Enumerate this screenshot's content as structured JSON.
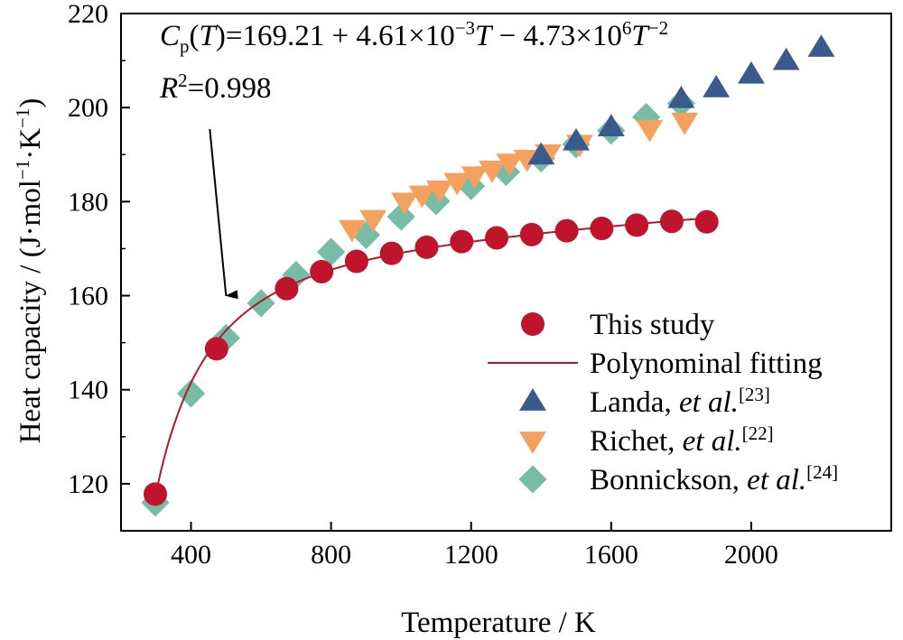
{
  "chart_data": {
    "type": "scatter",
    "title": "",
    "xlabel": "Temperature / K",
    "ylabel_main": "Heat capacity / (J·mol",
    "ylabel_sup1": "−1",
    "ylabel_mid": "·K",
    "ylabel_sup2": "−1",
    "ylabel_end": ")",
    "xlim": [
      200,
      2400
    ],
    "ylim": [
      110,
      220
    ],
    "xticks": [
      400,
      800,
      1200,
      1600,
      2000
    ],
    "yticks": [
      120,
      140,
      160,
      180,
      200,
      220
    ],
    "grid": false,
    "legend_position": "bottom-right",
    "annotation": {
      "eq_C": "C",
      "eq_p": "p",
      "eq_open": "(",
      "eq_T1": "T",
      "eq_mid1": ")=169.21 + 4.61×10",
      "eq_exp1": "−3",
      "eq_T2": "T",
      "eq_mid2": " − 4.73×10",
      "eq_exp2": "6",
      "eq_T3": "T",
      "eq_exp3": "−2",
      "r2_R": "R",
      "r2_exp": "2",
      "r2_val": "=0.998",
      "arrow_target": [
        500,
        160
      ]
    },
    "fit": {
      "name": "Polynominal fitting",
      "color": "#b2182b",
      "a": 169.21,
      "b": 0.00461,
      "c": 4730000,
      "x_range": [
        298,
        1880
      ]
    },
    "series": [
      {
        "name": "This study",
        "marker": "circle",
        "color": "#c0142c",
        "x": [
          298,
          473,
          673,
          773,
          873,
          973,
          1073,
          1173,
          1273,
          1373,
          1473,
          1573,
          1673,
          1773,
          1873
        ],
        "y": [
          117.8,
          148.7,
          161.5,
          165.1,
          167.3,
          169.0,
          170.3,
          171.5,
          172.3,
          173.0,
          173.8,
          174.3,
          175.0,
          175.8,
          175.7
        ]
      },
      {
        "name": "Landa, ",
        "name_italic": "et al.",
        "ref": "[23]",
        "marker": "triangle-up",
        "color": "#3a5a8c",
        "x": [
          1400,
          1500,
          1600,
          1800,
          1900,
          2000,
          2100,
          2200
        ],
        "y": [
          189.8,
          192.8,
          195.8,
          201.8,
          204.1,
          207.0,
          209.9,
          212.7
        ]
      },
      {
        "name": "Richet, ",
        "name_italic": "et al.",
        "ref": "[22]",
        "marker": "triangle-down",
        "color": "#f4a15f",
        "x": [
          860,
          920,
          1010,
          1060,
          1110,
          1160,
          1210,
          1260,
          1310,
          1360,
          1420,
          1510,
          1710,
          1810
        ],
        "y": [
          174.2,
          176.3,
          180.0,
          181.5,
          182.6,
          184.2,
          185.6,
          186.8,
          188.3,
          189.1,
          190.3,
          192.3,
          195.5,
          197.0
        ]
      },
      {
        "name": "Bonnickson, ",
        "name_italic": "et al.",
        "ref": "[24]",
        "marker": "diamond",
        "color": "#76bca6",
        "x": [
          298,
          400,
          500,
          600,
          700,
          800,
          900,
          1000,
          1100,
          1200,
          1300,
          1400,
          1500,
          1600,
          1700,
          1800
        ],
        "y": [
          116.0,
          139.2,
          151.0,
          158.4,
          164.4,
          169.3,
          172.9,
          176.8,
          180.1,
          183.3,
          186.3,
          189.2,
          192.2,
          195.1,
          198.0,
          200.9
        ]
      }
    ]
  }
}
